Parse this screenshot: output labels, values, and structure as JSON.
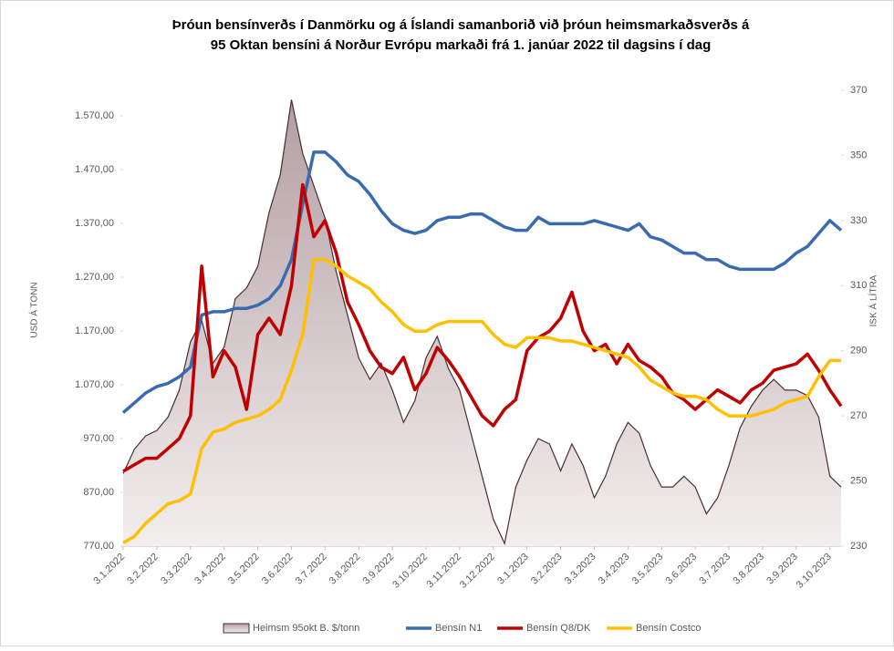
{
  "chart_data": {
    "type": "line",
    "title": [
      "Þróun bensínverðs í Danmörku og á Íslandi samanborið við þróun heimsmarkaðsverðs  á",
      "95 Oktan bensíni á Norður Evrópu markaði frá 1. janúar 2022 til dagsins í dag"
    ],
    "y_label": "USD Á TONN",
    "y2_label": "ISK Á LÍTRA",
    "categories": [
      "3.1.2022",
      null,
      null,
      "3.2.2022",
      null,
      null,
      "3.3.2022",
      null,
      null,
      "3.4.2022",
      null,
      null,
      "3.5.2022",
      null,
      null,
      "3.6.2022",
      null,
      null,
      "3.7.2022",
      null,
      null,
      "3.8.2022",
      null,
      null,
      "3.9.2022",
      null,
      null,
      "3.10.2022",
      null,
      null,
      "3.11.2022",
      null,
      null,
      "3.12.2022",
      null,
      null,
      "3.1.2023",
      null,
      null,
      "3.2.2023",
      null,
      null,
      "3.3.2023",
      null,
      null,
      "3.4.2023",
      null,
      null,
      "3.5.2023",
      null,
      null,
      "3.6.2023",
      null,
      null,
      "3.7.2023",
      null,
      null,
      "3.8.2023",
      null,
      null,
      "3.9.2023",
      null,
      null,
      "3.10.2023",
      null
    ],
    "ylim": [
      770,
      1617.5
    ],
    "yticks": [
      {
        "value": 770,
        "label": "770,00"
      },
      {
        "value": 870,
        "label": "870,00"
      },
      {
        "value": 970,
        "label": "970,00"
      },
      {
        "value": 1070,
        "label": "1.070,00"
      },
      {
        "value": 1170,
        "label": "1.170,00"
      },
      {
        "value": 1270,
        "label": "1.270,00"
      },
      {
        "value": 1370,
        "label": "1.370,00"
      },
      {
        "value": 1470,
        "label": "1.470,00"
      },
      {
        "value": 1570,
        "label": "1.570,00"
      }
    ],
    "y2lim": [
      230,
      370
    ],
    "y2ticks": [
      230,
      250,
      270,
      290,
      310,
      330,
      350,
      370
    ],
    "grid": false,
    "legend": "bottom",
    "series": [
      {
        "name": "Heimsm 95okt B. $/tonn",
        "kind": "area",
        "color": "#4b2d2d",
        "axis": "y",
        "values": [
          905,
          950,
          975,
          985,
          1010,
          1060,
          1150,
          1190,
          1110,
          1140,
          1230,
          1250,
          1290,
          1390,
          1460,
          1600,
          1500,
          1440,
          1380,
          1280,
          1200,
          1120,
          1080,
          1110,
          1060,
          1000,
          1040,
          1120,
          1160,
          1100,
          1060,
          980,
          900,
          820,
          775,
          880,
          930,
          970,
          960,
          910,
          960,
          920,
          860,
          900,
          960,
          1000,
          980,
          920,
          880,
          880,
          900,
          880,
          830,
          860,
          920,
          990,
          1030,
          1060,
          1080,
          1060,
          1060,
          1050,
          1010,
          900,
          880
        ]
      },
      {
        "name": "Bensín N1",
        "color": "#3a6bb0",
        "axis": "y2",
        "values": [
          271,
          274,
          277,
          279,
          280,
          282,
          285,
          301,
          302,
          302,
          303,
          303,
          304,
          306,
          310,
          318,
          335,
          351,
          351,
          348,
          344,
          342,
          338,
          333,
          329,
          327,
          326,
          327,
          330,
          331,
          331,
          332,
          332,
          330,
          328,
          327,
          327,
          331,
          329,
          329,
          329,
          329,
          330,
          329,
          328,
          327,
          329,
          325,
          324,
          322,
          320,
          320,
          318,
          318,
          316,
          315,
          315,
          315,
          315,
          317,
          320,
          322,
          326,
          330,
          327
        ]
      },
      {
        "name": "Bensín Q8/DK",
        "color": "#c00000",
        "axis": "y2",
        "values": [
          253,
          255,
          257,
          257,
          260,
          263,
          270,
          316,
          282,
          290,
          285,
          272,
          295,
          300,
          295,
          310,
          341,
          325,
          330,
          320,
          305,
          298,
          290,
          285,
          283,
          288,
          278,
          283,
          291,
          287,
          282,
          276,
          270,
          267,
          272,
          275,
          290,
          294,
          296,
          300,
          308,
          296,
          290,
          292,
          286,
          292,
          287,
          285,
          282,
          277,
          275,
          272,
          275,
          278,
          276,
          274,
          278,
          280,
          284,
          285,
          286,
          289,
          284,
          278,
          273
        ]
      },
      {
        "name": "Bensín Costco",
        "color": "#ffc000",
        "axis": "y2",
        "values": [
          231,
          233,
          237,
          240,
          243,
          244,
          246,
          260,
          265,
          266,
          268,
          269,
          270,
          272,
          275,
          284,
          295,
          318,
          318,
          316,
          313,
          311,
          309,
          305,
          302,
          298,
          296,
          296,
          298,
          299,
          299,
          299,
          299,
          295,
          292,
          291,
          294,
          294,
          294,
          293,
          293,
          292,
          291,
          290,
          289,
          288,
          285,
          281,
          279,
          277,
          276,
          276,
          275,
          272,
          270,
          270,
          270,
          271,
          272,
          274,
          275,
          276,
          282,
          287,
          287
        ]
      }
    ]
  }
}
